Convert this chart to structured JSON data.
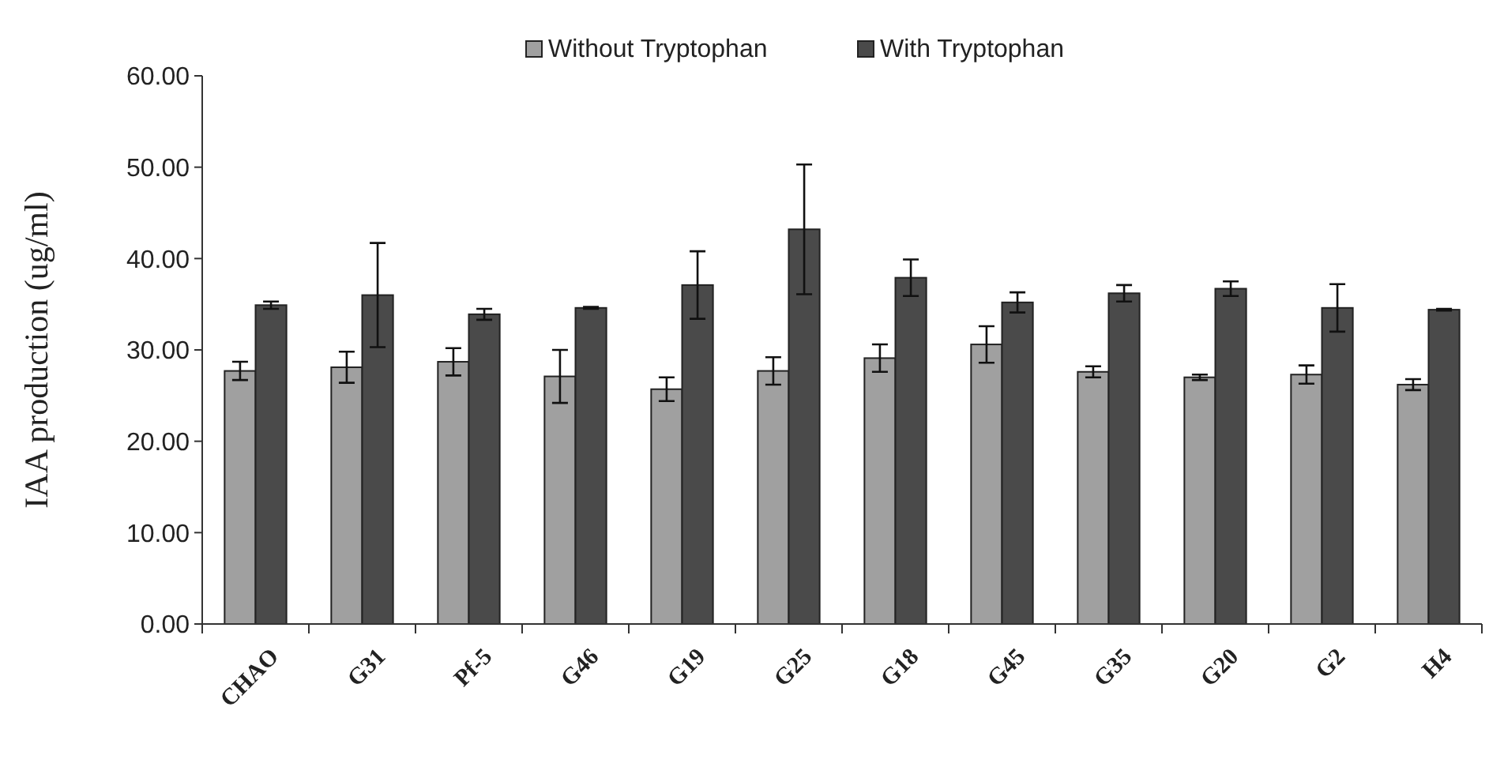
{
  "chart_data": {
    "type": "bar",
    "ylabel": "IAA production (ug/ml)",
    "categories": [
      "CHAO",
      "G31",
      "Pf-5",
      "G46",
      "G19",
      "G25",
      "G18",
      "G45",
      "G35",
      "G20",
      "G2",
      "H4"
    ],
    "series": [
      {
        "name": "Without Tryptophan",
        "color": "#a0a0a0",
        "values": [
          27.7,
          28.1,
          28.7,
          27.1,
          25.7,
          27.7,
          29.1,
          30.6,
          27.6,
          27.0,
          27.3,
          26.2
        ],
        "errors": [
          1.0,
          1.7,
          1.5,
          2.9,
          1.3,
          1.5,
          1.5,
          2.0,
          0.6,
          0.3,
          1.0,
          0.6
        ]
      },
      {
        "name": "With Tryptophan",
        "color": "#4a4a4a",
        "values": [
          34.9,
          36.0,
          33.9,
          34.6,
          37.1,
          43.2,
          37.9,
          35.2,
          36.2,
          36.7,
          34.6,
          34.4
        ],
        "errors": [
          0.4,
          5.7,
          0.6,
          0.1,
          3.7,
          7.1,
          2.0,
          1.1,
          0.9,
          0.8,
          2.6,
          0.1
        ]
      }
    ],
    "ylim": [
      0,
      60
    ],
    "yticks": [
      {
        "value": 0,
        "label": "0.00"
      },
      {
        "value": 10,
        "label": "10.00"
      },
      {
        "value": 20,
        "label": "20.00"
      },
      {
        "value": 30,
        "label": "30.00"
      },
      {
        "value": 40,
        "label": "40.00"
      },
      {
        "value": 50,
        "label": "50.00"
      },
      {
        "value": 60,
        "label": "60.00"
      }
    ],
    "grid": false,
    "legend": "top"
  }
}
